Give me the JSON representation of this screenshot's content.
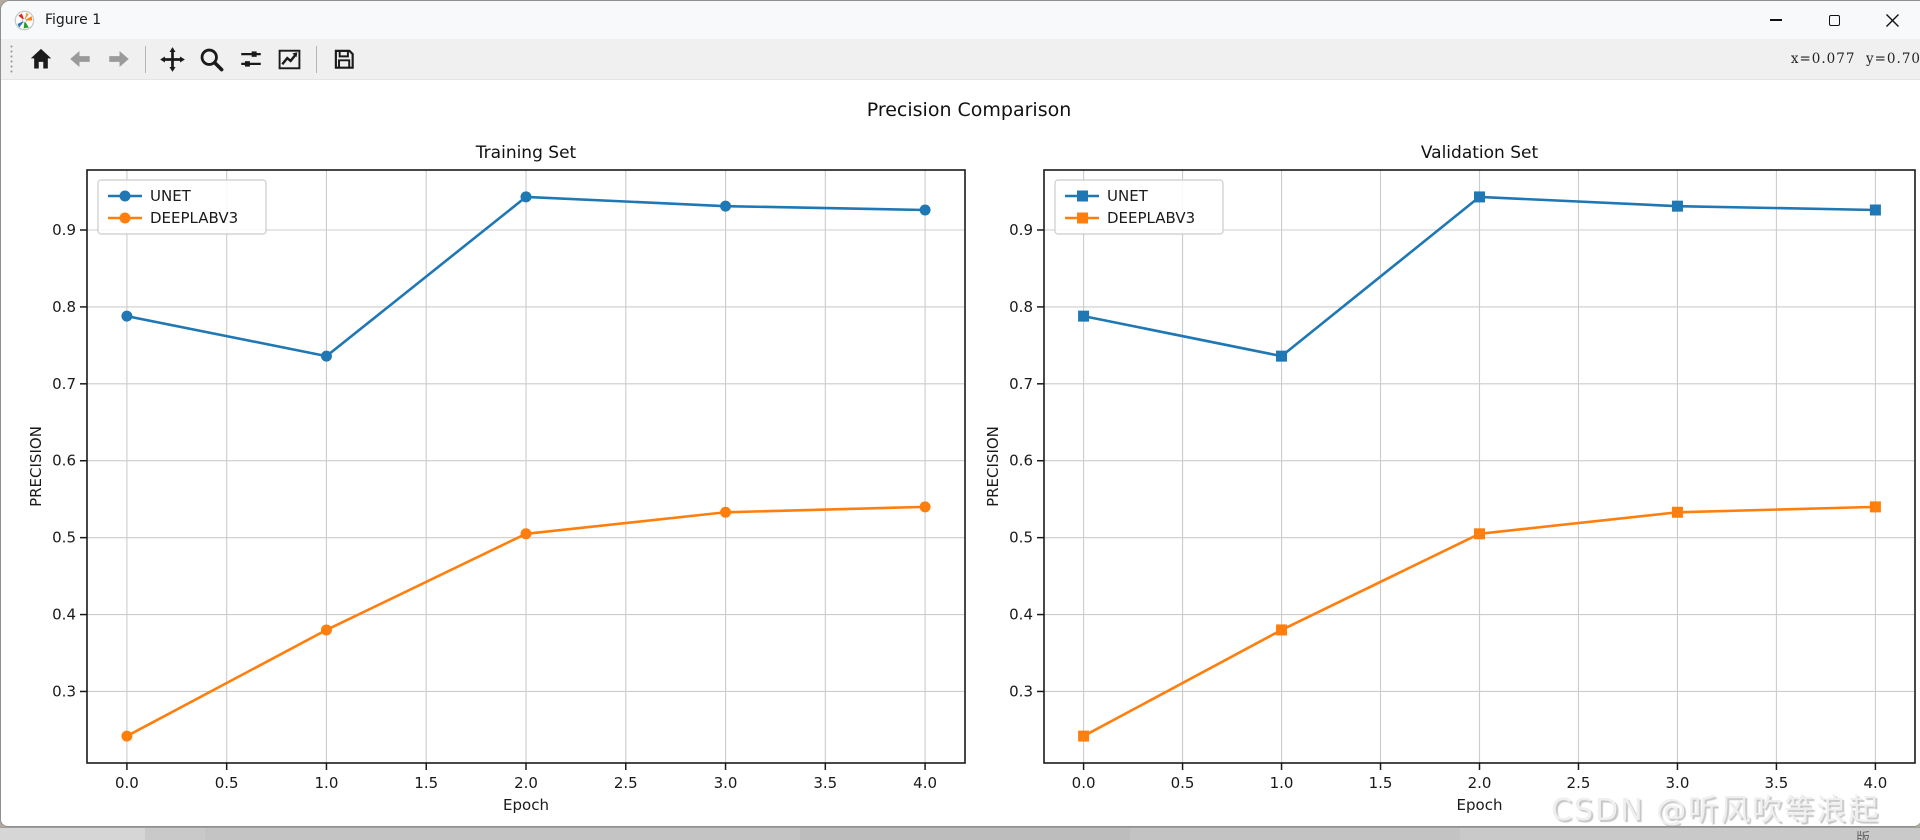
{
  "window": {
    "title": "Figure 1",
    "caption_buttons": [
      "minimize",
      "maximize",
      "close"
    ]
  },
  "toolbar": {
    "buttons": [
      "home",
      "back",
      "forward",
      "pan",
      "zoom",
      "configure-subplots",
      "edit-axes",
      "save"
    ],
    "status": "x=0.077  y=0.70"
  },
  "suptitle": "Precision Comparison",
  "watermark": "CSDN @听风吹等浪起",
  "taskbar_glyph": "版",
  "colors": {
    "unet": "#1f77b4",
    "deeplabv3": "#ff7f0e",
    "grid": "#cccccc",
    "spine": "#1a1a1a"
  },
  "chart_data": [
    {
      "type": "line",
      "title": "Training Set",
      "xlabel": "Epoch",
      "ylabel": "PRECISION",
      "x": [
        0,
        1,
        2,
        3,
        4
      ],
      "series": [
        {
          "name": "UNET",
          "color": "#1f77b4",
          "marker": "circle",
          "values": [
            0.788,
            0.736,
            0.943,
            0.931,
            0.926
          ]
        },
        {
          "name": "DEEPLABV3",
          "color": "#ff7f0e",
          "marker": "circle",
          "values": [
            0.242,
            0.38,
            0.505,
            0.533,
            0.54
          ]
        }
      ],
      "xlim": [
        -0.2,
        4.2
      ],
      "ylim": [
        0.207,
        0.978
      ],
      "xticks": [
        0,
        0.5,
        1,
        1.5,
        2,
        2.5,
        3,
        3.5,
        4
      ],
      "xtick_labels": [
        "0.0",
        "0.5",
        "1.0",
        "1.5",
        "2.0",
        "2.5",
        "3.0",
        "3.5",
        "4.0"
      ],
      "yticks": [
        0.3,
        0.4,
        0.5,
        0.6,
        0.7,
        0.8,
        0.9
      ],
      "ytick_labels": [
        "0.3",
        "0.4",
        "0.5",
        "0.6",
        "0.7",
        "0.8",
        "0.9"
      ],
      "grid": true,
      "legend_position": "upper left"
    },
    {
      "type": "line",
      "title": "Validation Set",
      "xlabel": "Epoch",
      "ylabel": "PRECISION",
      "x": [
        0,
        1,
        2,
        3,
        4
      ],
      "series": [
        {
          "name": "UNET",
          "color": "#1f77b4",
          "marker": "square",
          "values": [
            0.788,
            0.736,
            0.943,
            0.931,
            0.926
          ]
        },
        {
          "name": "DEEPLABV3",
          "color": "#ff7f0e",
          "marker": "square",
          "values": [
            0.242,
            0.38,
            0.505,
            0.533,
            0.54
          ]
        }
      ],
      "xlim": [
        -0.2,
        4.2
      ],
      "ylim": [
        0.207,
        0.978
      ],
      "xticks": [
        0,
        0.5,
        1,
        1.5,
        2,
        2.5,
        3,
        3.5,
        4
      ],
      "xtick_labels": [
        "0.0",
        "0.5",
        "1.0",
        "1.5",
        "2.0",
        "2.5",
        "3.0",
        "3.5",
        "4.0"
      ],
      "yticks": [
        0.3,
        0.4,
        0.5,
        0.6,
        0.7,
        0.8,
        0.9
      ],
      "ytick_labels": [
        "0.3",
        "0.4",
        "0.5",
        "0.6",
        "0.7",
        "0.8",
        "0.9"
      ],
      "grid": true,
      "legend_position": "upper left"
    }
  ]
}
